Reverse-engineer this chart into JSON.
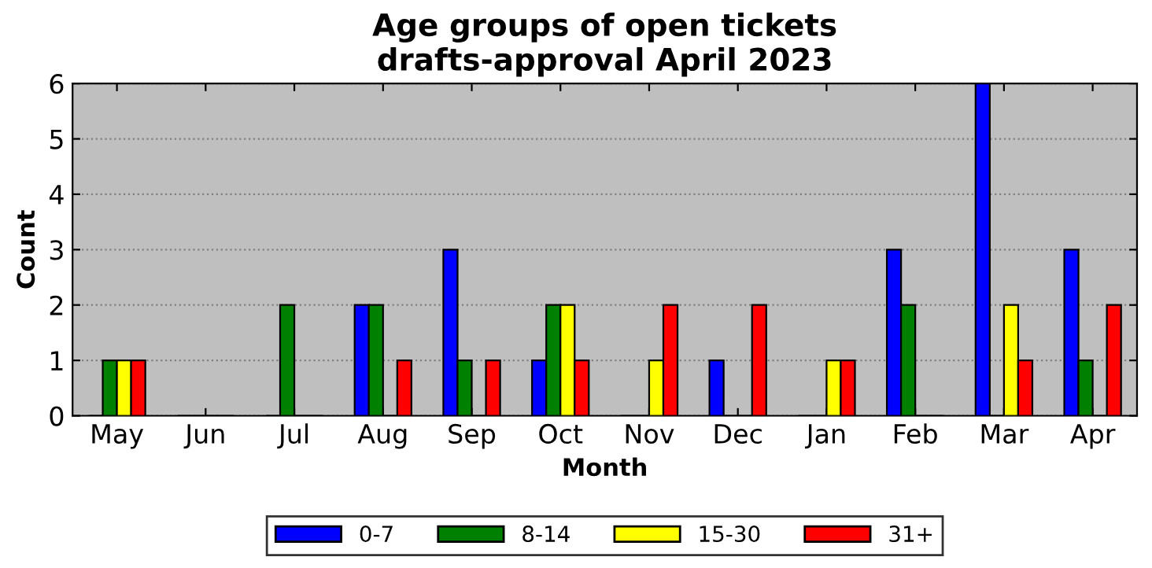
{
  "chart_data": {
    "type": "bar",
    "title": "Age groups of open tickets\ndrafts-approval April 2023",
    "xlabel": "Month",
    "ylabel": "Count",
    "categories": [
      "May",
      "Jun",
      "Jul",
      "Aug",
      "Sep",
      "Oct",
      "Nov",
      "Dec",
      "Jan",
      "Feb",
      "Mar",
      "Apr"
    ],
    "series": [
      {
        "name": "0-7",
        "color": "#0000ff",
        "values": [
          0,
          0,
          0,
          2,
          3,
          1,
          0,
          1,
          0,
          3,
          6,
          3
        ]
      },
      {
        "name": "8-14",
        "color": "#008000",
        "values": [
          1,
          0,
          2,
          2,
          1,
          2,
          0,
          0,
          0,
          2,
          0,
          1
        ]
      },
      {
        "name": "15-30",
        "color": "#ffff00",
        "values": [
          1,
          0,
          0,
          0,
          0,
          2,
          1,
          0,
          1,
          0,
          2,
          0
        ]
      },
      {
        "name": "31+",
        "color": "#ff0000",
        "values": [
          1,
          0,
          0,
          1,
          1,
          1,
          2,
          2,
          1,
          0,
          1,
          2
        ]
      }
    ],
    "ylim": [
      0,
      6
    ],
    "yticks": [
      0,
      1,
      2,
      3,
      4,
      5,
      6
    ],
    "grid": "y",
    "legend": "bottom"
  }
}
